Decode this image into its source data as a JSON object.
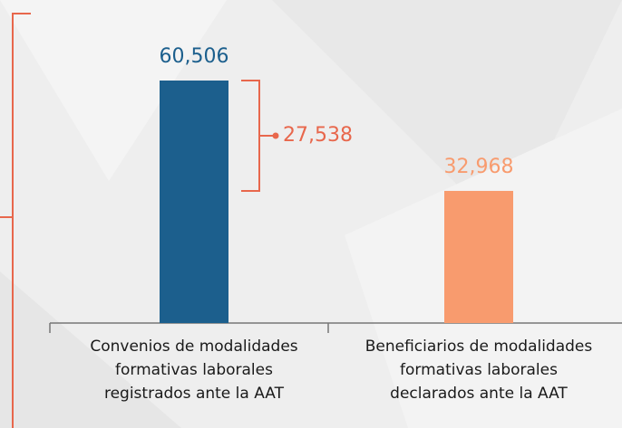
{
  "chart_data": {
    "type": "bar",
    "categories": [
      "Convenios de modalidades\nformativas laborales\nregistrados ante la AAT",
      "Beneficiarios de modalidades\nformativas laborales\ndeclarados ante la AAT"
    ],
    "values": [
      60506,
      32968
    ],
    "value_labels": [
      "60,506",
      "32,968"
    ],
    "colors": [
      "#1c5f8d",
      "#f89b6e"
    ],
    "annotations": [
      {
        "value": 27538,
        "label": "27,538",
        "color": "#e8674c"
      }
    ]
  }
}
